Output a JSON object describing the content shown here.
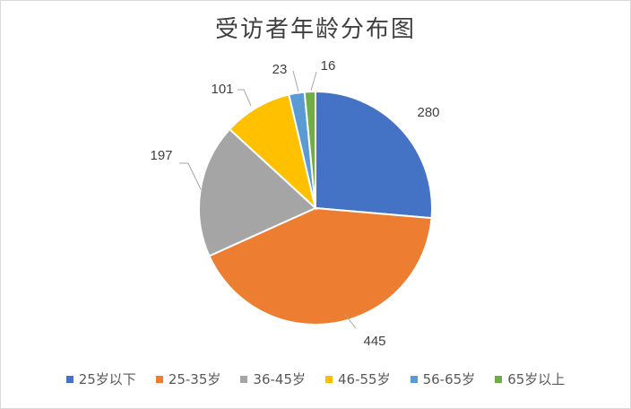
{
  "chart_data": {
    "type": "pie",
    "title": "受访者年龄分布图",
    "categories": [
      "25岁以下",
      "25-35岁",
      "36-45岁",
      "46-55岁",
      "56-65岁",
      "65岁以上"
    ],
    "values": [
      280,
      445,
      197,
      101,
      23,
      16
    ],
    "colors": [
      "#4472C4",
      "#ED7D31",
      "#A5A5A5",
      "#FFC000",
      "#5B9BD5",
      "#70AD47"
    ],
    "data_labels": [
      "280",
      "445",
      "197",
      "101",
      "23",
      "16"
    ],
    "legend_position": "bottom",
    "start_angle_deg": 0,
    "direction": "clockwise"
  }
}
